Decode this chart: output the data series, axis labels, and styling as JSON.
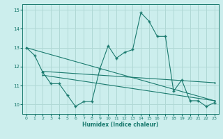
{
  "xlabel": "Humidex (Indice chaleur)",
  "bg_color": "#cceeed",
  "grid_color": "#b0d8d5",
  "line_color": "#1a7a6e",
  "xlim": [
    -0.5,
    23.5
  ],
  "ylim": [
    9.5,
    15.3
  ],
  "xticks": [
    0,
    1,
    2,
    3,
    4,
    5,
    6,
    7,
    8,
    9,
    10,
    11,
    12,
    13,
    14,
    15,
    16,
    17,
    18,
    19,
    20,
    21,
    22,
    23
  ],
  "yticks": [
    10,
    11,
    12,
    13,
    14,
    15
  ],
  "main_x": [
    0,
    1,
    2,
    3,
    4,
    5,
    6,
    7,
    8,
    9,
    10,
    11,
    12,
    13,
    14,
    15,
    16,
    17,
    18,
    19,
    20,
    21,
    22,
    23
  ],
  "main_y": [
    13.0,
    12.6,
    11.7,
    11.1,
    11.1,
    10.5,
    9.9,
    10.15,
    10.15,
    11.9,
    13.1,
    12.45,
    12.75,
    12.9,
    14.85,
    14.4,
    13.6,
    13.6,
    10.7,
    11.3,
    10.2,
    10.2,
    9.9,
    10.1
  ],
  "line1_x": [
    0,
    23
  ],
  "line1_y": [
    13.0,
    10.2
  ],
  "line2_x": [
    2,
    23
  ],
  "line2_y": [
    11.75,
    11.15
  ],
  "line3_x": [
    2,
    23
  ],
  "line3_y": [
    11.55,
    10.2
  ]
}
